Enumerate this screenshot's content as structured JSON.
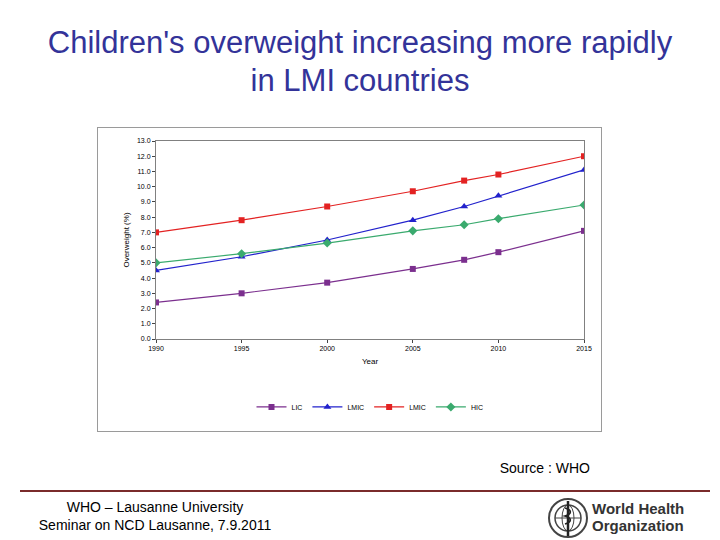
{
  "chart_data": {
    "type": "line",
    "title": "Children's overweight increasing more rapidly in LMI countries",
    "x_label": "Year",
    "y_label": "Overweight (%)",
    "x": [
      1990,
      1995,
      2000,
      2005,
      2008,
      2010,
      2015
    ],
    "series": [
      {
        "name": "LIC",
        "color": "#7b2f8e",
        "marker": "square",
        "line_style": "solid",
        "values": [
          2.4,
          3.0,
          3.7,
          4.6,
          5.2,
          5.7,
          7.1
        ]
      },
      {
        "name": "LMIC",
        "color": "#2222cc",
        "marker": "triangle-up",
        "line_style": "solid",
        "values": [
          4.5,
          5.4,
          6.5,
          7.8,
          8.7,
          9.4,
          11.1
        ]
      },
      {
        "name": "LMIC",
        "color": "#e32222",
        "marker": "square",
        "line_style": "solid",
        "values": [
          7.0,
          7.8,
          8.7,
          9.7,
          10.4,
          10.8,
          12.0
        ]
      },
      {
        "name": "HIC",
        "color": "#3aaa6e",
        "marker": "diamond",
        "line_style": "solid",
        "values": [
          5.0,
          5.6,
          6.3,
          7.1,
          7.5,
          7.9,
          8.8
        ]
      }
    ],
    "xlim": [
      1990,
      2015
    ],
    "xticks": [
      1990,
      1995,
      2000,
      2005,
      2010,
      2015
    ],
    "ylim": [
      0,
      13
    ],
    "yticks": [
      {
        "value": 0,
        "label": "0.0"
      },
      {
        "value": 1,
        "label": "1.0"
      },
      {
        "value": 2,
        "label": "2.0"
      },
      {
        "value": 3,
        "label": "3.0"
      },
      {
        "value": 4,
        "label": "4.0"
      },
      {
        "value": 5,
        "label": "5.0"
      },
      {
        "value": 6,
        "label": "6.0"
      },
      {
        "value": 7,
        "label": "7.0"
      },
      {
        "value": 8,
        "label": "8.0"
      },
      {
        "value": 9,
        "label": "9.0"
      },
      {
        "value": 10,
        "label": "10.0"
      },
      {
        "value": 11,
        "label": "11.0"
      },
      {
        "value": 12,
        "label": "12.0"
      },
      {
        "value": 13,
        "label": "13.0"
      }
    ],
    "grid": false,
    "legend": "bottom",
    "data_labels": false,
    "annotations": [
      "Source : WHO",
      "WHO – Lausanne University",
      "Seminar on NCD Lausanne, 7.9.2011",
      "World Health",
      "Organization"
    ]
  }
}
